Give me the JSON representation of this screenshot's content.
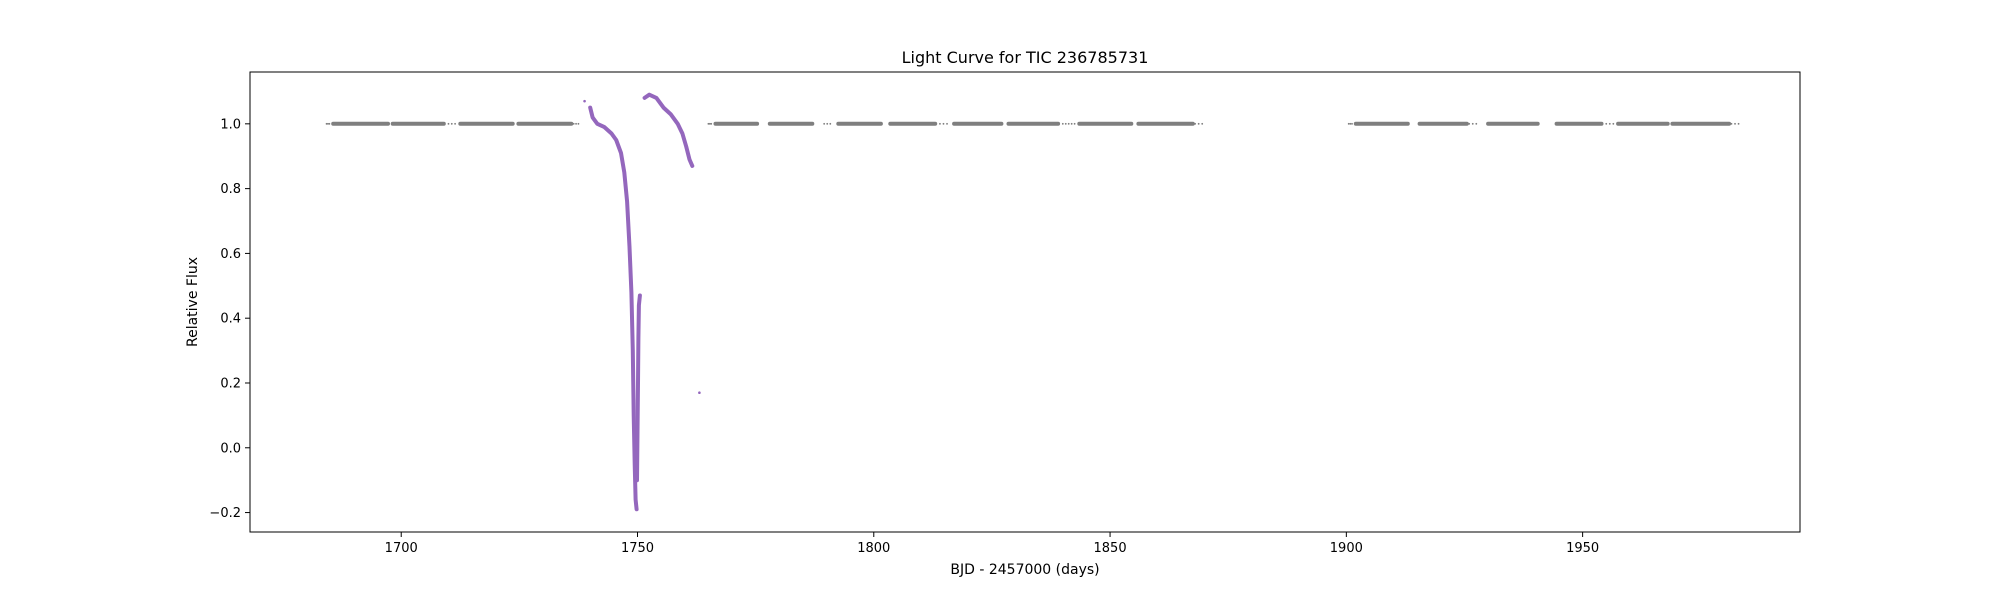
{
  "chart_data": {
    "type": "scatter",
    "title": "Light Curve for TIC 236785731",
    "xlabel": "BJD - 2457000 (days)",
    "ylabel": "Relative Flux",
    "xlim": [
      1668,
      1996
    ],
    "ylim": [
      -0.26,
      1.16
    ],
    "xticks": [
      1700,
      1750,
      1800,
      1850,
      1900,
      1950
    ],
    "yticks": [
      -0.2,
      0.0,
      0.2,
      0.4,
      0.6,
      0.8,
      1.0
    ],
    "grid": false,
    "colors": {
      "baseline": "#7f7f7f",
      "event": "#9467bd"
    },
    "series": [
      {
        "color": "#7f7f7f",
        "segments": [
          {
            "x": [
              1684.2,
              1684.8
            ],
            "y": [
              1.0,
              1.0
            ],
            "sparse": true
          },
          {
            "x": [
              1685.6,
              1697.2
            ],
            "y": [
              1.0,
              1.0
            ]
          },
          {
            "x": [
              1698.2,
              1709.0
            ],
            "y": [
              1.0,
              1.0
            ]
          },
          {
            "x": [
              1710.0,
              1711.4
            ],
            "y": [
              1.0,
              1.0
            ],
            "sparse": true
          },
          {
            "x": [
              1712.5,
              1723.6
            ],
            "y": [
              1.0,
              1.0
            ]
          },
          {
            "x": [
              1724.8,
              1736.0
            ],
            "y": [
              1.0,
              1.0
            ]
          },
          {
            "x": [
              1736.5,
              1737.5
            ],
            "y": [
              1.0,
              1.0
            ],
            "sparse": true
          },
          {
            "x": [
              1765.0,
              1765.6
            ],
            "y": [
              1.0,
              1.0
            ],
            "sparse": true
          },
          {
            "x": [
              1766.5,
              1775.3
            ],
            "y": [
              1.0,
              1.0
            ]
          },
          {
            "x": [
              1778.0,
              1787.0
            ],
            "y": [
              1.0,
              1.0
            ]
          },
          {
            "x": [
              1789.5,
              1790.8
            ],
            "y": [
              1.0,
              1.0
            ],
            "sparse": true
          },
          {
            "x": [
              1792.5,
              1801.5
            ],
            "y": [
              1.0,
              1.0
            ]
          },
          {
            "x": [
              1803.5,
              1813.0
            ],
            "y": [
              1.0,
              1.0
            ]
          },
          {
            "x": [
              1814.0,
              1815.5
            ],
            "y": [
              1.0,
              1.0
            ],
            "sparse": true
          },
          {
            "x": [
              1817.0,
              1827.0
            ],
            "y": [
              1.0,
              1.0
            ]
          },
          {
            "x": [
              1828.5,
              1839.0
            ],
            "y": [
              1.0,
              1.0
            ]
          },
          {
            "x": [
              1840.0,
              1842.5
            ],
            "y": [
              1.0,
              1.0
            ],
            "sparse": true
          },
          {
            "x": [
              1843.5,
              1854.5
            ],
            "y": [
              1.0,
              1.0
            ]
          },
          {
            "x": [
              1856.0,
              1867.5
            ],
            "y": [
              1.0,
              1.0
            ]
          },
          {
            "x": [
              1868.0,
              1869.5
            ],
            "y": [
              1.0,
              1.0
            ],
            "sparse": true
          },
          {
            "x": [
              1900.5,
              1901.2
            ],
            "y": [
              1.0,
              1.0
            ],
            "sparse": true
          },
          {
            "x": [
              1902.0,
              1913.0
            ],
            "y": [
              1.0,
              1.0
            ]
          },
          {
            "x": [
              1915.5,
              1925.5
            ],
            "y": [
              1.0,
              1.0
            ]
          },
          {
            "x": [
              1926.0,
              1927.5
            ],
            "y": [
              1.0,
              1.0
            ],
            "sparse": true
          },
          {
            "x": [
              1930.0,
              1940.5
            ],
            "y": [
              1.0,
              1.0
            ]
          },
          {
            "x": [
              1944.5,
              1954.0
            ],
            "y": [
              1.0,
              1.0
            ]
          },
          {
            "x": [
              1955.0,
              1956.5
            ],
            "y": [
              1.0,
              1.0
            ],
            "sparse": true
          },
          {
            "x": [
              1957.5,
              1968.0
            ],
            "y": [
              1.0,
              1.0
            ]
          },
          {
            "x": [
              1969.0,
              1981.0
            ],
            "y": [
              1.0,
              1.0
            ]
          },
          {
            "x": [
              1981.5,
              1983.0
            ],
            "y": [
              1.0,
              1.0
            ],
            "sparse": true
          }
        ]
      },
      {
        "color": "#9467bd",
        "segments": [
          {
            "x": [
              1738.8
            ],
            "y": [
              1.07
            ],
            "sparse": true
          },
          {
            "x": [
              1740.0,
              1740.5,
              1741.5,
              1743.0,
              1744.5,
              1745.5,
              1746.5,
              1747.2,
              1747.8,
              1748.3,
              1748.7,
              1749.0,
              1749.2,
              1749.4,
              1749.6,
              1749.8
            ],
            "y": [
              1.05,
              1.02,
              1.0,
              0.99,
              0.97,
              0.95,
              0.91,
              0.85,
              0.76,
              0.62,
              0.48,
              0.3,
              0.1,
              -0.05,
              -0.16,
              -0.19
            ]
          },
          {
            "x": [
              1749.9,
              1750.0,
              1750.1,
              1750.2,
              1750.3,
              1750.5
            ],
            "y": [
              -0.1,
              0.05,
              0.2,
              0.34,
              0.44,
              0.47
            ]
          },
          {
            "x": [
              1751.5,
              1752.5,
              1754.0,
              1755.5,
              1757.0,
              1758.5,
              1759.5,
              1760.3,
              1761.0,
              1761.6
            ],
            "y": [
              1.08,
              1.09,
              1.08,
              1.05,
              1.03,
              1.0,
              0.97,
              0.93,
              0.89,
              0.87
            ]
          },
          {
            "x": [
              1763.1
            ],
            "y": [
              0.17
            ],
            "sparse": true
          }
        ]
      }
    ]
  }
}
